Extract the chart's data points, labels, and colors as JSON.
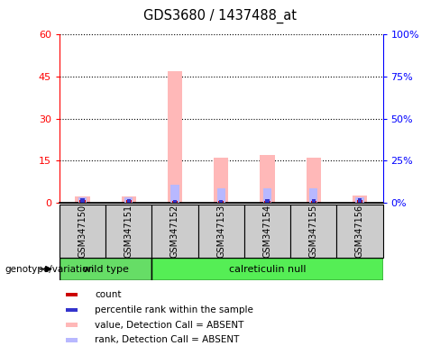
{
  "title": "GDS3680 / 1437488_at",
  "samples": [
    "GSM347150",
    "GSM347151",
    "GSM347152",
    "GSM347153",
    "GSM347154",
    "GSM347155",
    "GSM347156"
  ],
  "groups": [
    "wild type",
    "wild type",
    "calreticulin null",
    "calreticulin null",
    "calreticulin null",
    "calreticulin null",
    "calreticulin null"
  ],
  "count_values": [
    1.0,
    0.8,
    0.5,
    0.5,
    0.5,
    0.5,
    1.0
  ],
  "percentile_rank_values": [
    2.5,
    2.0,
    1.5,
    1.5,
    1.8,
    1.8,
    2.5
  ],
  "absent_value_values": [
    2.2,
    2.0,
    47.0,
    16.0,
    17.0,
    16.0,
    2.5
  ],
  "absent_rank_values": [
    3.0,
    2.8,
    10.5,
    8.5,
    8.5,
    8.5,
    3.0
  ],
  "ylim_left": [
    0,
    60
  ],
  "ylim_right": [
    0,
    100
  ],
  "yticks_left": [
    0,
    15,
    30,
    45,
    60
  ],
  "yticks_right": [
    0,
    25,
    50,
    75,
    100
  ],
  "ytick_labels_right": [
    "0%",
    "25%",
    "50%",
    "75%",
    "100%"
  ],
  "color_count": "#cc0000",
  "color_percentile": "#3333cc",
  "color_absent_value": "#ffb8b8",
  "color_absent_rank": "#b8b8ff",
  "group_wt_color": "#66dd66",
  "group_calret_color": "#55ee55",
  "sample_box_color": "#cccccc",
  "group_label": "genotype/variation",
  "legend_items": [
    {
      "label": "count",
      "color": "#cc0000"
    },
    {
      "label": "percentile rank within the sample",
      "color": "#3333cc"
    },
    {
      "label": "value, Detection Call = ABSENT",
      "color": "#ffb8b8"
    },
    {
      "label": "rank, Detection Call = ABSENT",
      "color": "#b8b8ff"
    }
  ]
}
